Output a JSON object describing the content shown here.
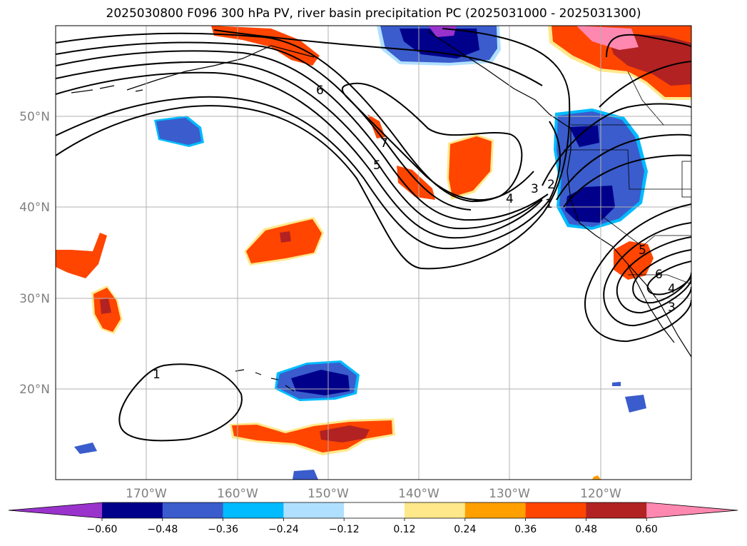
{
  "title": "2025030800 F096 300 hPa PV, river basin precipitation PC (2025031000 - 2025031300)",
  "map": {
    "lat_labels": [
      {
        "lat": 50,
        "text": "50°N"
      },
      {
        "lat": 40,
        "text": "40°N"
      },
      {
        "lat": 30,
        "text": "30°N"
      },
      {
        "lat": 20,
        "text": "20°N"
      }
    ],
    "lon_labels": [
      {
        "lon": -170,
        "text": "170°W"
      },
      {
        "lon": -160,
        "text": "160°W"
      },
      {
        "lon": -150,
        "text": "150°W"
      },
      {
        "lon": -140,
        "text": "140°W"
      },
      {
        "lon": -130,
        "text": "130°W"
      },
      {
        "lon": -120,
        "text": "120°W"
      }
    ],
    "pv_contour_labels": [
      "6",
      "7",
      "5",
      "4",
      "3",
      "2",
      "1",
      "1",
      "6",
      "4",
      "5",
      "3"
    ]
  },
  "colorbar": {
    "colors": [
      "#9933cc",
      "#00008b",
      "#3a5ccc",
      "#00bbff",
      "#b0e0ff",
      "#ffffff",
      "#ffe88a",
      "#ff9f00",
      "#ff4500",
      "#b22222",
      "#ff88b0"
    ],
    "tick_labels": [
      "−0.60",
      "−0.48",
      "−0.36",
      "−0.24",
      "−0.12",
      "0.12",
      "0.24",
      "0.36",
      "0.48",
      "0.60"
    ]
  }
}
